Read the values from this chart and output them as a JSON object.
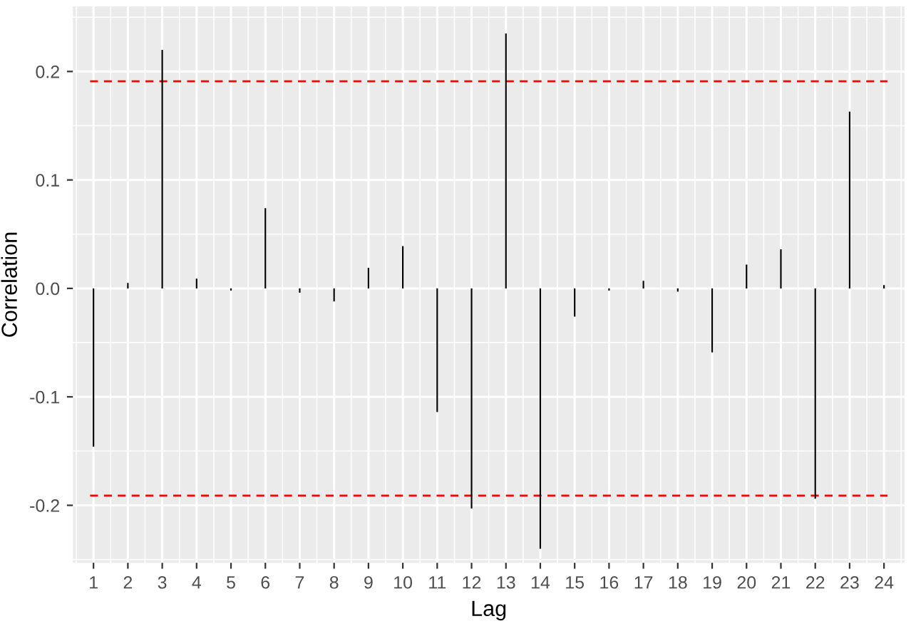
{
  "chart_data": {
    "type": "bar",
    "xlabel": "Lag",
    "ylabel": "Correlation",
    "categories": [
      "1",
      "2",
      "3",
      "4",
      "5",
      "6",
      "7",
      "8",
      "9",
      "10",
      "11",
      "12",
      "13",
      "14",
      "15",
      "16",
      "17",
      "18",
      "19",
      "20",
      "21",
      "22",
      "23",
      "24"
    ],
    "values": [
      -0.146,
      0.005,
      0.22,
      0.009,
      -0.002,
      0.074,
      -0.004,
      -0.012,
      0.019,
      0.039,
      -0.114,
      -0.203,
      0.235,
      -0.24,
      -0.026,
      -0.002,
      0.007,
      -0.003,
      -0.059,
      0.022,
      0.036,
      -0.194,
      0.163,
      0.003
    ],
    "color": "#000000",
    "ylim": [
      -0.253,
      0.26
    ],
    "yticks": [
      {
        "value": -0.2,
        "label": "-0.2"
      },
      {
        "value": -0.1,
        "label": "-0.1"
      },
      {
        "value": 0,
        "label": "0.0"
      },
      {
        "value": 0.1,
        "label": "0.1"
      },
      {
        "value": 0.2,
        "label": "0.2"
      }
    ],
    "ref_lines": [
      {
        "axis": "y",
        "value": 0.191,
        "color": "#ff0000",
        "line_style": "dashed"
      },
      {
        "axis": "y",
        "value": -0.191,
        "color": "#ff0000",
        "line_style": "dashed"
      }
    ],
    "grid": true
  }
}
